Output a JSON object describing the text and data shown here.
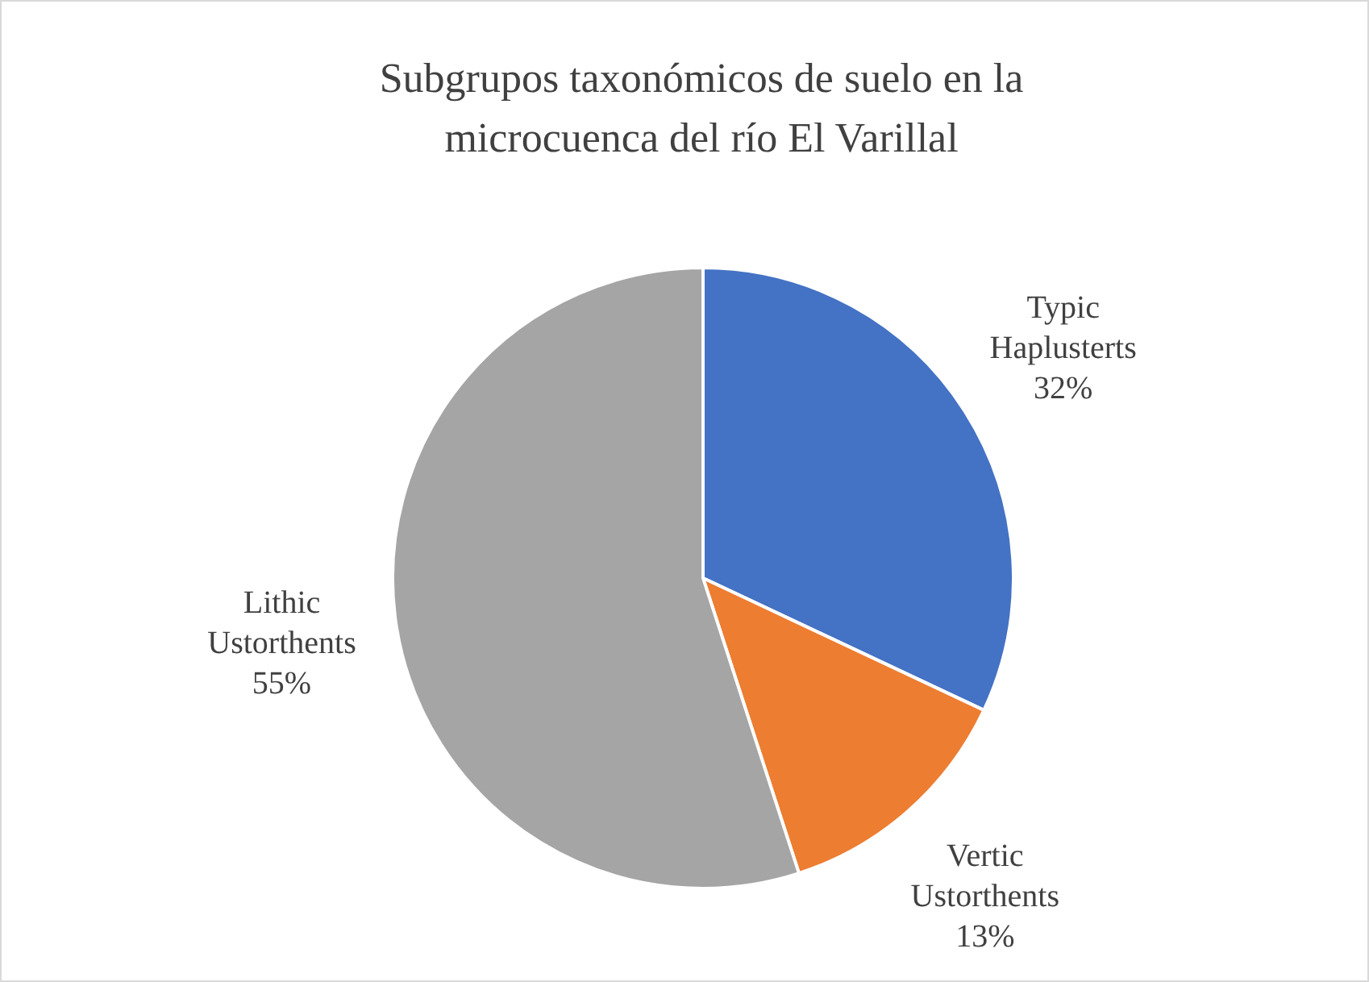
{
  "chart_data": {
    "type": "pie",
    "title": "Subgrupos taxonómicos de suelo en la microcuenca del río El Varillal",
    "categories": [
      "Typic Haplusterts",
      "Vertic Ustorthents",
      "Lithic Ustorthents"
    ],
    "values": [
      32,
      13,
      55
    ],
    "colors": [
      "#4472c4",
      "#ed7d31",
      "#a5a5a5"
    ],
    "value_labels": [
      "32%",
      "13%",
      "55%"
    ],
    "legend": false
  }
}
